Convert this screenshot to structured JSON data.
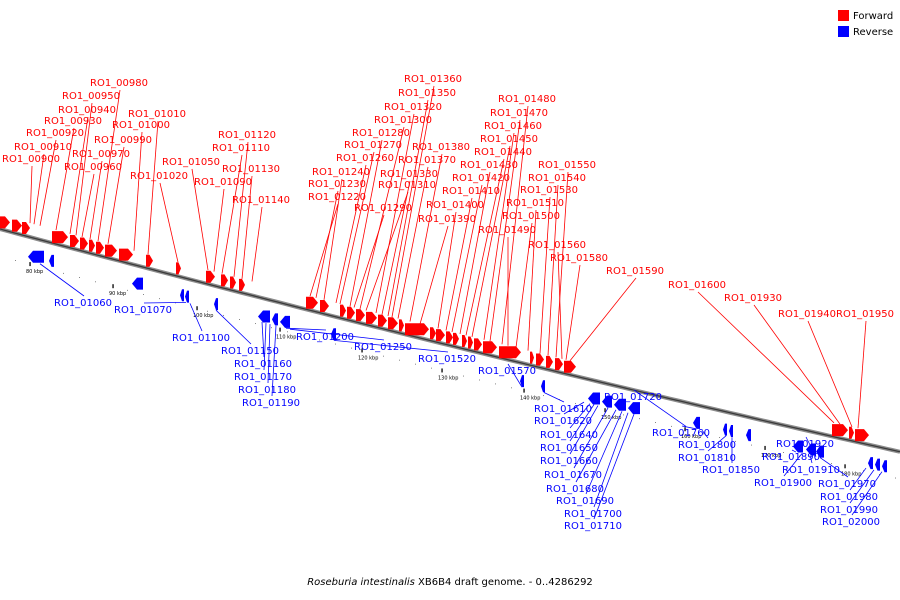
{
  "caption": {
    "species": "Roseburia intestinalis",
    "rest": " XB6B4 draft genome. - 0..4286292"
  },
  "legend": [
    {
      "label": "Forward",
      "color": "#ff0000"
    },
    {
      "label": "Reverse",
      "color": "#0000ff"
    }
  ],
  "axis": {
    "ticks": [
      "80 kbp",
      "90 kbp",
      "100 kbp",
      "110 kbp",
      "120 kbp",
      "130 kbp",
      "140 kbp",
      "150 kbp",
      "160 kbp",
      "170 kbp",
      "180 kbp"
    ]
  },
  "forward_genes": [
    "RO1_00900",
    "RO1_00910",
    "RO1_00920",
    "RO1_00930",
    "RO1_00940",
    "RO1_00950",
    "RO1_00960",
    "RO1_00970",
    "RO1_00980",
    "RO1_00990",
    "RO1_01000",
    "RO1_01010",
    "RO1_01020",
    "RO1_01050",
    "RO1_01090",
    "RO1_01110",
    "RO1_01120",
    "RO1_01130",
    "RO1_01140",
    "RO1_01220",
    "RO1_01230",
    "RO1_01240",
    "RO1_01260",
    "RO1_01270",
    "RO1_01280",
    "RO1_01290",
    "RO1_01300",
    "RO1_01310",
    "RO1_01320",
    "RO1_01330",
    "RO1_01350",
    "RO1_01360",
    "RO1_01370",
    "RO1_01380",
    "RO1_01390",
    "RO1_01400",
    "RO1_01410",
    "RO1_01420",
    "RO1_01430",
    "RO1_01440",
    "RO1_01450",
    "RO1_01460",
    "RO1_01470",
    "RO1_01480",
    "RO1_01490",
    "RO1_01500",
    "RO1_01510",
    "RO1_01530",
    "RO1_01540",
    "RO1_01550",
    "RO1_01560",
    "RO1_01580",
    "RO1_01590",
    "RO1_01600",
    "RO1_01930",
    "RO1_01940",
    "RO1_01950"
  ],
  "reverse_genes": [
    "RO1_01060",
    "RO1_01070",
    "RO1_01100",
    "RO1_01150",
    "RO1_01160",
    "RO1_01170",
    "RO1_01180",
    "RO1_01190",
    "RO1_01200",
    "RO1_01250",
    "RO1_01520",
    "RO1_01570",
    "RO1_01610",
    "RO1_01620",
    "RO1_01640",
    "RO1_01650",
    "RO1_01660",
    "RO1_01670",
    "RO1_01680",
    "RO1_01690",
    "RO1_01700",
    "RO1_01710",
    "RO1_01720",
    "RO1_01760",
    "RO1_01800",
    "RO1_01810",
    "RO1_01850",
    "RO1_01890",
    "RO1_01900",
    "RO1_01910",
    "RO1_01920",
    "RO1_01970",
    "RO1_01980",
    "RO1_01990",
    "RO1_02000"
  ]
}
